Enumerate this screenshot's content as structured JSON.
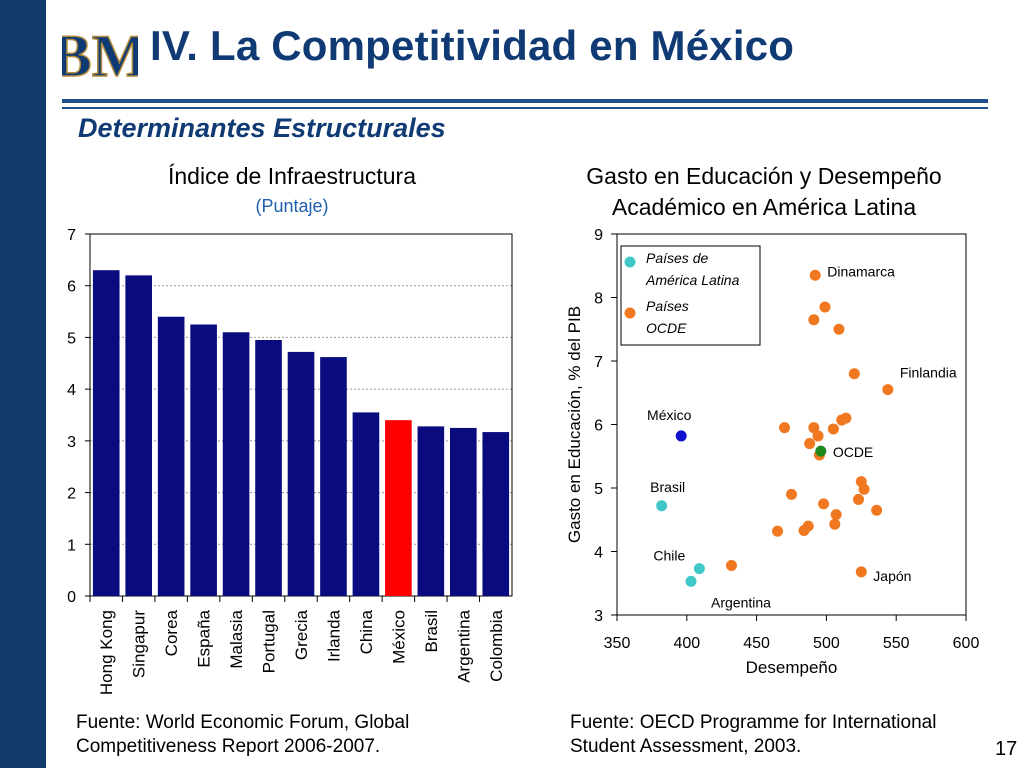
{
  "slide": {
    "title": "IV. La Competitividad en México",
    "subtitle": "Determinantes Estructurales",
    "page_number": "17",
    "logo_letters": "BM",
    "sources": {
      "left": [
        "Fuente: World Economic Forum, Global",
        "Competitiveness Report 2006-2007."
      ],
      "right": [
        "Fuente: OECD Programme for International",
        "Student Assessment, 2003."
      ]
    },
    "colors": {
      "navy": "#123a6b",
      "title": "#0f3a73",
      "bar": "#0b0b80",
      "highlight_bar": "#ff0000",
      "latam": "#40c8c8",
      "ocde": "#f07820",
      "mexico": "#1010cc",
      "ocde_avg": "#1e8a1e"
    }
  },
  "chart_data": [
    {
      "type": "bar",
      "title": "Índice de Infraestructura",
      "subtitle": "(Puntaje)",
      "categories": [
        "Hong Kong",
        "Singapur",
        "Corea",
        "España",
        "Malasia",
        "Portugal",
        "Grecia",
        "Irlanda",
        "China",
        "México",
        "Brasil",
        "Argentina",
        "Colombia"
      ],
      "values": [
        6.3,
        6.2,
        5.4,
        5.25,
        5.1,
        4.95,
        4.72,
        4.62,
        3.55,
        3.4,
        3.28,
        3.25,
        3.17
      ],
      "highlight": "México",
      "ylim": [
        0,
        7
      ],
      "yticks": [
        "0",
        "1",
        "2",
        "3",
        "4",
        "5",
        "6",
        "7"
      ],
      "grid": true
    },
    {
      "type": "scatter",
      "title": [
        "Gasto en Educación y Desempeño",
        "Académico en América Latina"
      ],
      "xlabel": "Desempeño",
      "ylabel": "Gasto en Educación, % del PIB",
      "xlim": [
        350,
        600
      ],
      "ylim": [
        3,
        9
      ],
      "xticks": [
        "350",
        "400",
        "450",
        "500",
        "550",
        "600"
      ],
      "yticks": [
        "3",
        "4",
        "5",
        "6",
        "7",
        "8",
        "9"
      ],
      "legend": {
        "position": "top-left",
        "entries": [
          {
            "label": [
              "Países de",
              "América Latina"
            ],
            "series": "latam"
          },
          {
            "label": [
              "Países",
              "OCDE"
            ],
            "series": "ocde"
          }
        ]
      },
      "series": [
        {
          "key": "latam",
          "points": [
            {
              "x": 382,
              "y": 4.72,
              "label": "Brasil"
            },
            {
              "x": 409,
              "y": 3.73,
              "label": "Chile"
            },
            {
              "x": 403,
              "y": 3.53,
              "label": "Argentina"
            }
          ]
        },
        {
          "key": "mexico",
          "points": [
            {
              "x": 396,
              "y": 5.82,
              "label": "México"
            }
          ]
        },
        {
          "key": "ocde",
          "points": [
            {
              "x": 492,
              "y": 8.35,
              "label": "Dinamarca"
            },
            {
              "x": 499,
              "y": 7.85
            },
            {
              "x": 491,
              "y": 7.65
            },
            {
              "x": 509,
              "y": 7.5
            },
            {
              "x": 520,
              "y": 6.8
            },
            {
              "x": 544,
              "y": 6.55,
              "label": "Finlandia"
            },
            {
              "x": 514,
              "y": 6.1
            },
            {
              "x": 511,
              "y": 6.07
            },
            {
              "x": 470,
              "y": 5.95
            },
            {
              "x": 491,
              "y": 5.95
            },
            {
              "x": 505,
              "y": 5.93
            },
            {
              "x": 494,
              "y": 5.82
            },
            {
              "x": 488,
              "y": 5.7
            },
            {
              "x": 495,
              "y": 5.52
            },
            {
              "x": 525,
              "y": 5.1
            },
            {
              "x": 527,
              "y": 4.98
            },
            {
              "x": 475,
              "y": 4.9
            },
            {
              "x": 523,
              "y": 4.82
            },
            {
              "x": 498,
              "y": 4.75
            },
            {
              "x": 536,
              "y": 4.65
            },
            {
              "x": 507,
              "y": 4.58
            },
            {
              "x": 506,
              "y": 4.43
            },
            {
              "x": 487,
              "y": 4.4
            },
            {
              "x": 484,
              "y": 4.33
            },
            {
              "x": 465,
              "y": 4.32
            },
            {
              "x": 432,
              "y": 3.78
            },
            {
              "x": 525,
              "y": 3.68,
              "label": "Japón"
            }
          ]
        },
        {
          "key": "ocde_avg",
          "points": [
            {
              "x": 496,
              "y": 5.58,
              "label": "OCDE"
            }
          ]
        }
      ]
    }
  ]
}
